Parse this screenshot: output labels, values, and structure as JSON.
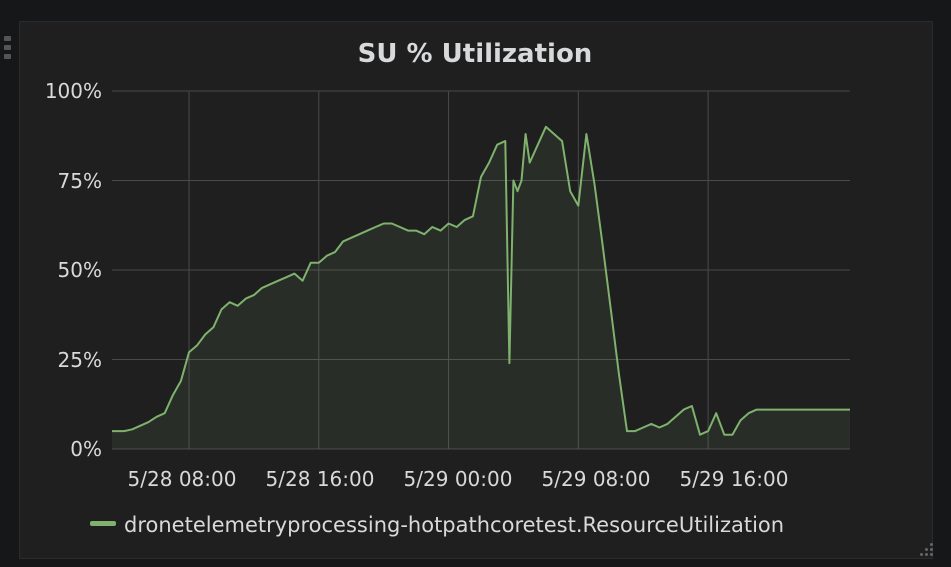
{
  "chart_data": {
    "type": "area",
    "title": "SU % Utilization",
    "y_ticks": [
      "100%",
      "75%",
      "50%",
      "25%",
      "0%"
    ],
    "ylim": [
      0,
      100
    ],
    "x_ticks": [
      "5/28 08:00",
      "5/28 16:00",
      "5/29 00:00",
      "5/29 08:00",
      "5/29 16:00"
    ],
    "xlim": [
      "5/28 03:15",
      "5/30 00:45"
    ],
    "grid": true,
    "legend_position": "bottom-left",
    "series": [
      {
        "name": "dronetelemetryprocessing-hotpathcoretest.ResourceUtilization",
        "color": "#7eb26d",
        "x": [
          "5/28 03:15",
          "5/28 03:30",
          "5/28 04:00",
          "5/28 04:30",
          "5/28 05:00",
          "5/28 05:30",
          "5/28 06:00",
          "5/28 06:30",
          "5/28 07:00",
          "5/28 07:30",
          "5/28 08:00",
          "5/28 08:30",
          "5/28 09:00",
          "5/28 09:30",
          "5/28 10:00",
          "5/28 10:30",
          "5/28 11:00",
          "5/28 11:30",
          "5/28 12:00",
          "5/28 12:30",
          "5/28 13:00",
          "5/28 13:30",
          "5/28 14:00",
          "5/28 14:30",
          "5/28 15:00",
          "5/28 15:30",
          "5/28 16:00",
          "5/28 16:30",
          "5/28 17:00",
          "5/28 17:30",
          "5/28 18:00",
          "5/28 18:30",
          "5/28 19:00",
          "5/28 19:30",
          "5/28 20:00",
          "5/28 20:30",
          "5/28 21:00",
          "5/28 21:30",
          "5/28 22:00",
          "5/28 22:30",
          "5/28 23:00",
          "5/28 23:30",
          "5/29 00:00",
          "5/29 00:30",
          "5/29 01:00",
          "5/29 01:30",
          "5/29 02:00",
          "5/29 02:30",
          "5/29 03:00",
          "5/29 03:30",
          "5/29 03:45",
          "5/29 04:00",
          "5/29 04:15",
          "5/29 04:30",
          "5/29 04:45",
          "5/29 05:00",
          "5/29 05:30",
          "5/29 06:00",
          "5/29 06:30",
          "5/29 07:00",
          "5/29 07:30",
          "5/29 08:00",
          "5/29 08:30",
          "5/29 09:00",
          "5/29 09:30",
          "5/29 10:00",
          "5/29 10:30",
          "5/29 11:00",
          "5/29 11:30",
          "5/29 12:00",
          "5/29 12:30",
          "5/29 13:00",
          "5/29 13:30",
          "5/29 14:00",
          "5/29 14:30",
          "5/29 15:00",
          "5/29 15:30",
          "5/29 16:00",
          "5/29 16:30",
          "5/29 17:00",
          "5/29 17:30",
          "5/29 18:00",
          "5/29 18:30",
          "5/29 19:00",
          "5/29 19:30",
          "5/29 20:00",
          "5/29 20:30",
          "5/29 21:00",
          "5/29 21:30",
          "5/29 22:00",
          "5/29 22:30",
          "5/29 23:00",
          "5/29 23:30",
          "5/30 00:00",
          "5/30 00:30",
          "5/30 00:45"
        ],
        "values": [
          5,
          5,
          5,
          5.5,
          6.5,
          7.5,
          9,
          10,
          15,
          19,
          27,
          29,
          32,
          34,
          39,
          41,
          40,
          42,
          43,
          45,
          46,
          47,
          48,
          49,
          47,
          52,
          52,
          54,
          55,
          58,
          59,
          60,
          61,
          62,
          63,
          63,
          62,
          61,
          61,
          60,
          62,
          61,
          63,
          62,
          64,
          65,
          76,
          80,
          85,
          86,
          24,
          75,
          72,
          75,
          88,
          80,
          85,
          90,
          88,
          86,
          72,
          68,
          88,
          74,
          57,
          39,
          21,
          5,
          5,
          6,
          7,
          6,
          7,
          9,
          11,
          12,
          4,
          5,
          10,
          4,
          4,
          8,
          10,
          11,
          11,
          11,
          11,
          11,
          11,
          11,
          11,
          11,
          11,
          11,
          11,
          11
        ]
      }
    ]
  }
}
